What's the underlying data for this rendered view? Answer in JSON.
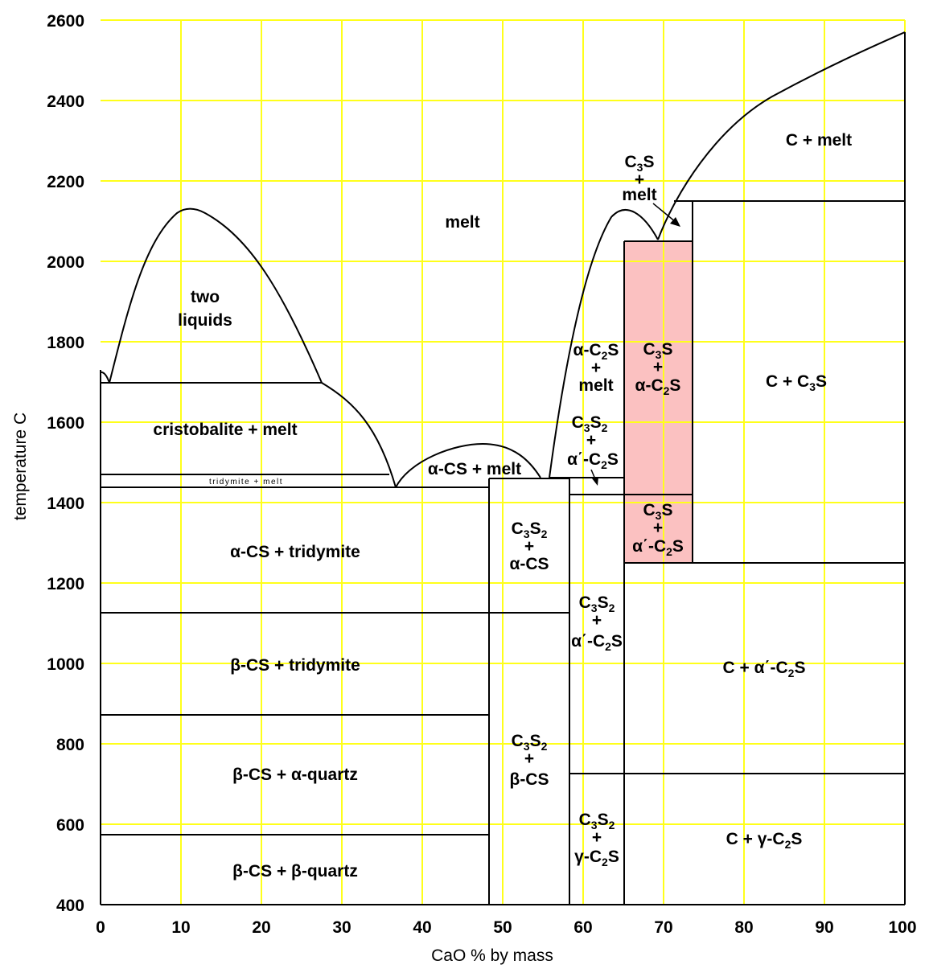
{
  "x_axis": {
    "label": "CaO % by mass",
    "ticks": [
      "0",
      "10",
      "20",
      "30",
      "40",
      "50",
      "60",
      "70",
      "80",
      "90",
      "100"
    ]
  },
  "y_axis": {
    "label": "temperature C",
    "ticks": [
      "400",
      "600",
      "800",
      "1000",
      "1200",
      "1400",
      "1600",
      "1800",
      "2000",
      "2200",
      "2400",
      "2600"
    ]
  },
  "colors": {
    "grid": "#ffff1a",
    "highlight": "#fbc1c1",
    "lines": "#000000"
  },
  "regions": {
    "melt": "melt",
    "two_liquids": [
      "two",
      "liquids"
    ],
    "cristobalite_melt": "cristobalite + melt",
    "tridymite_melt": "tridymite + melt",
    "a_cs_melt": "α-CS + melt",
    "a_cs_tridymite": "α-CS + tridymite",
    "b_cs_tridymite": "β-CS + tridymite",
    "b_cs_a_quartz": "β-CS + α-quartz",
    "b_cs_b_quartz": "β-CS + β-quartz",
    "c3s2_a_cs": {
      "plus": "+",
      "second": "α-CS"
    },
    "c3s2_b_cs": {
      "plus": "+",
      "second": "β-CS"
    },
    "a_c2s_melt": {
      "plus": "+",
      "second": "melt"
    },
    "c3s2_ap_c2s_upper": {
      "plus": "+"
    },
    "c3s2_ap_c2s_lower": {
      "plus": "+"
    },
    "c3s2_g_c2s": {
      "plus": "+"
    },
    "c3s_melt": {
      "plus": "+",
      "second": "melt"
    },
    "c3s_a_c2s": {
      "plus": "+"
    },
    "c3s_ap_c2s": {
      "plus": "+"
    },
    "c_melt": "C + melt",
    "c_c3s": "C + C",
    "c_ap_c2s": "C + α΄-C",
    "c_g_c2s": "C + γ-C"
  },
  "chemistry": {
    "C": "C",
    "S": "S",
    "sub2": "2",
    "sub3": "3",
    "a_C": "α-C",
    "ap_C": "α΄-C",
    "g_C": "γ-C"
  }
}
